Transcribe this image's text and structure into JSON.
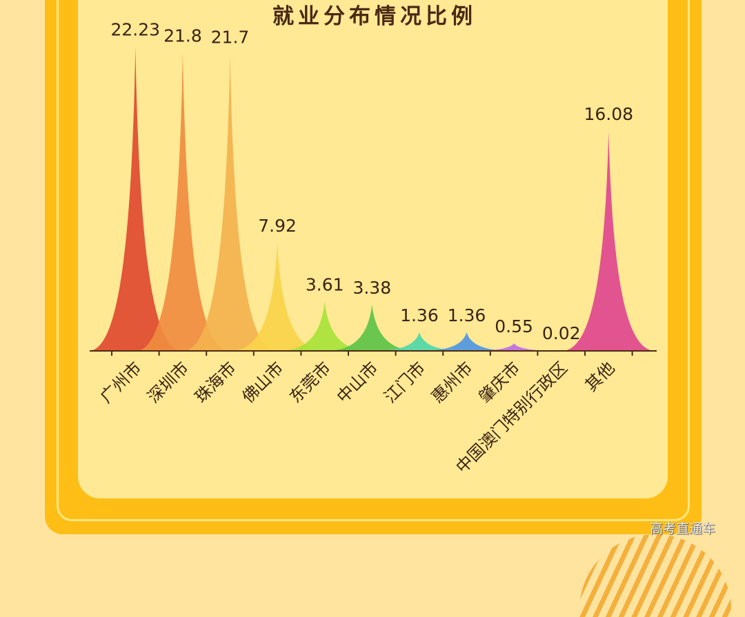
{
  "chart_data": {
    "type": "area",
    "title": "就业分布情况比例",
    "xlabel": "",
    "ylabel": "",
    "grid": false,
    "legend": null,
    "ylim": [
      0,
      22.23
    ],
    "categories": [
      "广州市",
      "深圳市",
      "珠海市",
      "佛山市",
      "东莞市",
      "中山市",
      "江门市",
      "惠州市",
      "肇庆市",
      "中国澳门特别行政区",
      "其他"
    ],
    "values": [
      22.23,
      21.8,
      21.7,
      7.92,
      3.61,
      3.38,
      1.36,
      1.36,
      0.55,
      0.02,
      16.08
    ],
    "value_labels": [
      "22.23",
      "21.8",
      "21.7",
      "7.92",
      "3.61",
      "3.38",
      "1.36",
      "1.36",
      "0.55",
      "0.02",
      "16.08"
    ],
    "colors": [
      "#E04A2F",
      "#F08C40",
      "#F3B24E",
      "#F9D24A",
      "#A8E23A",
      "#5EC24A",
      "#4FD6A8",
      "#4F96E2",
      "#C06AE6",
      "#BBBBBB",
      "#E0468E"
    ],
    "style": "pictorial spike peaks with labels above"
  },
  "watermark": "高考直通车"
}
